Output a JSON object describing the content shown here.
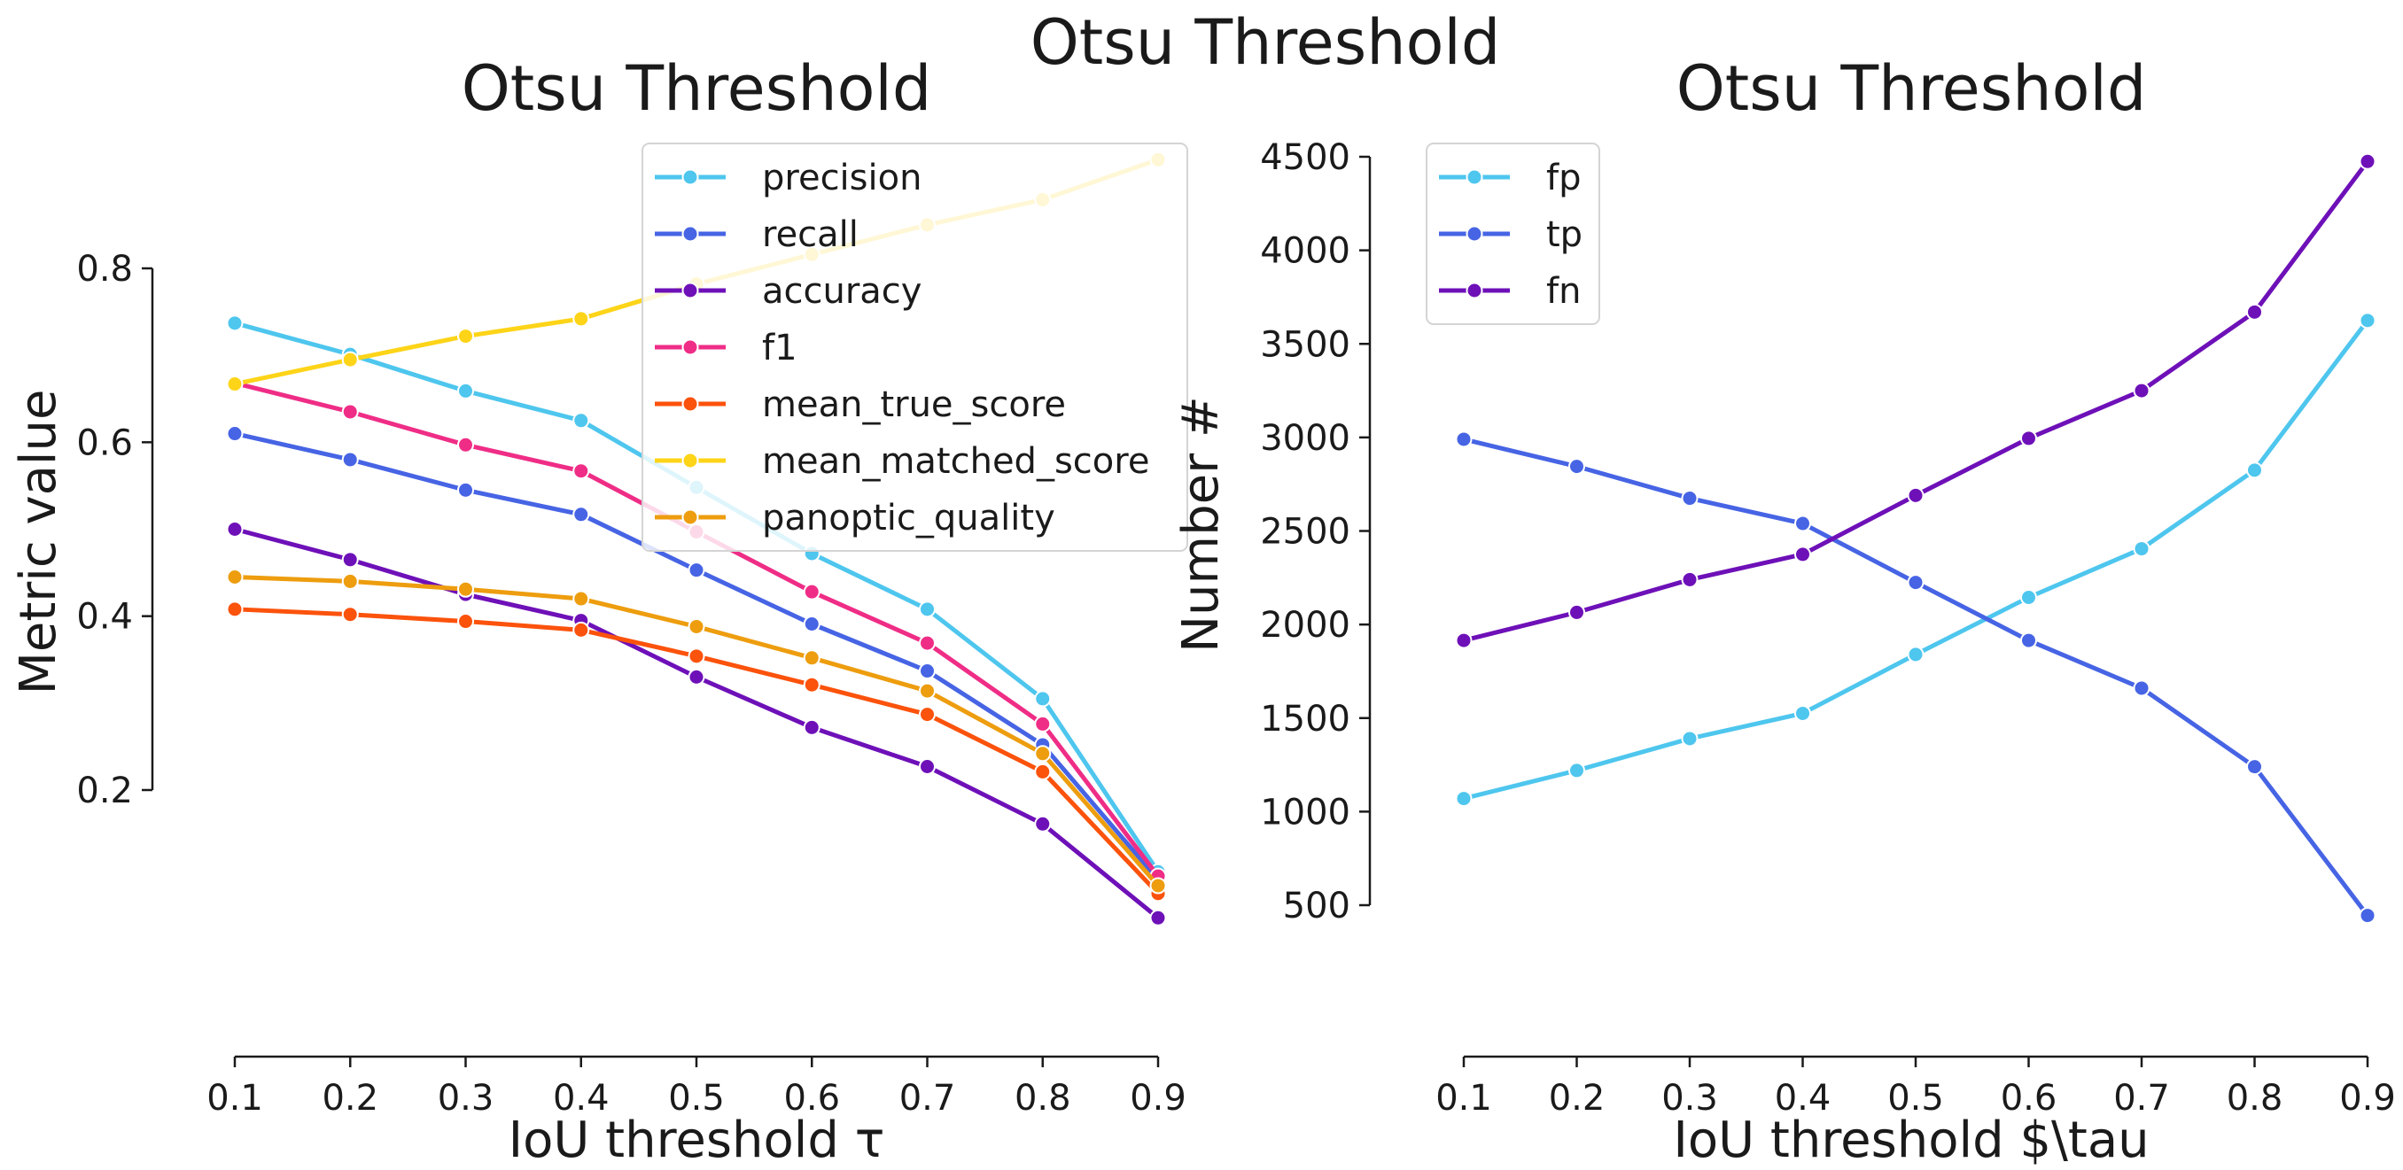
{
  "figure": {
    "title": "Otsu Threshold"
  },
  "chart_data": [
    {
      "type": "line",
      "title": "Otsu Threshold",
      "xlabel": "IoU threshold τ",
      "ylabel": "Metric value",
      "x": [
        0.1,
        0.2,
        0.3,
        0.4,
        0.5,
        0.6,
        0.7,
        0.8,
        0.9
      ],
      "xticks": [
        "0.1",
        "0.2",
        "0.3",
        "0.4",
        "0.5",
        "0.6",
        "0.7",
        "0.8",
        "0.9"
      ],
      "yticks": [
        "0.2",
        "0.4",
        "0.6",
        "0.8"
      ],
      "ylim": [
        -0.1,
        0.95
      ],
      "grid": false,
      "legend": "top-right",
      "series": [
        {
          "name": "precision",
          "color": "#4ec6ee",
          "values": [
            0.737,
            0.701,
            0.659,
            0.625,
            0.548,
            0.472,
            0.408,
            0.305,
            0.106
          ]
        },
        {
          "name": "recall",
          "color": "#4664e4",
          "values": [
            0.61,
            0.58,
            0.545,
            0.517,
            0.453,
            0.391,
            0.337,
            0.252,
            0.097
          ]
        },
        {
          "name": "accuracy",
          "color": "#6e10b8",
          "values": [
            0.5,
            0.465,
            0.425,
            0.395,
            0.33,
            0.272,
            0.227,
            0.161,
            0.053
          ]
        },
        {
          "name": "f1",
          "color": "#ef2d86",
          "values": [
            0.668,
            0.635,
            0.597,
            0.567,
            0.497,
            0.428,
            0.369,
            0.276,
            0.101
          ]
        },
        {
          "name": "mean_true_score",
          "color": "#fb520c",
          "values": [
            0.408,
            0.402,
            0.394,
            0.384,
            0.354,
            0.321,
            0.287,
            0.221,
            0.081
          ]
        },
        {
          "name": "mean_matched_score",
          "color": "#fdd418",
          "values": [
            0.667,
            0.695,
            0.722,
            0.742,
            0.782,
            0.816,
            0.85,
            0.879,
            0.925
          ]
        },
        {
          "name": "panoptic_quality",
          "color": "#ed9d0e",
          "values": [
            0.445,
            0.44,
            0.431,
            0.42,
            0.388,
            0.352,
            0.314,
            0.242,
            0.09
          ]
        }
      ]
    },
    {
      "type": "line",
      "title": "Otsu Threshold",
      "xlabel": "IoU threshold $\\tau",
      "ylabel": "Number #",
      "x": [
        0.1,
        0.2,
        0.3,
        0.4,
        0.5,
        0.6,
        0.7,
        0.8,
        0.9
      ],
      "xticks": [
        "0.1",
        "0.2",
        "0.3",
        "0.4",
        "0.5",
        "0.6",
        "0.7",
        "0.8",
        "0.9"
      ],
      "yticks": [
        "500",
        "1000",
        "1500",
        "2000",
        "2500",
        "3000",
        "3500",
        "4000",
        "4500"
      ],
      "ylim": [
        -300,
        4530
      ],
      "grid": false,
      "legend": "top-left",
      "series": [
        {
          "name": "fp",
          "color": "#4ec6ee",
          "values": [
            1070,
            1220,
            1390,
            1525,
            1840,
            2145,
            2405,
            2825,
            3625
          ]
        },
        {
          "name": "tp",
          "color": "#4664e4",
          "values": [
            2990,
            2845,
            2675,
            2540,
            2225,
            1915,
            1660,
            1240,
            445
          ]
        },
        {
          "name": "fn",
          "color": "#6e10b8",
          "values": [
            1915,
            2065,
            2240,
            2375,
            2690,
            2995,
            3250,
            3670,
            4475
          ]
        }
      ]
    }
  ]
}
